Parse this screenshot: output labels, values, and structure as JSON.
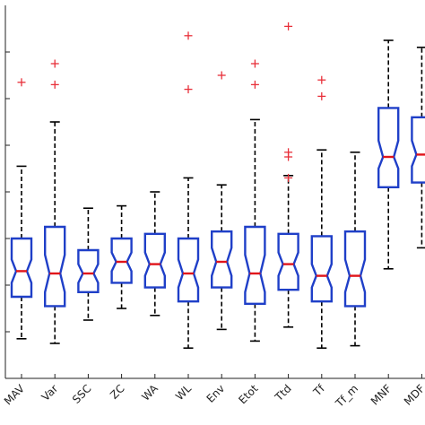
{
  "chart_data": {
    "type": "boxplot",
    "notched": true,
    "title": "",
    "xlabel": "",
    "ylabel": "",
    "ylim": [
      0,
      8
    ],
    "y_ticks": [
      1,
      2,
      3,
      4,
      5,
      6,
      7
    ],
    "y_tick_labels_visible": false,
    "categories": [
      "MAV",
      "Var",
      "SSC",
      "ZC",
      "WA",
      "WL",
      "Env",
      "Etot",
      "Ttd",
      "Tf",
      "Tf_m",
      "MNF",
      "MDF"
    ],
    "boxes": [
      {
        "category": "MAV",
        "whisker_low": 0.85,
        "q1": 1.75,
        "median": 2.3,
        "q3": 3.0,
        "whisker_high": 4.55,
        "notch_low": 2.05,
        "notch_high": 2.55,
        "outliers": [
          6.35
        ]
      },
      {
        "category": "Var",
        "whisker_low": 0.75,
        "q1": 1.55,
        "median": 2.25,
        "q3": 3.25,
        "whisker_high": 5.5,
        "notch_low": 1.85,
        "notch_high": 2.65,
        "outliers": [
          6.75,
          6.3
        ]
      },
      {
        "category": "SSC",
        "whisker_low": 1.25,
        "q1": 1.85,
        "median": 2.25,
        "q3": 2.75,
        "whisker_high": 3.65,
        "notch_low": 2.05,
        "notch_high": 2.45,
        "outliers": []
      },
      {
        "category": "ZC",
        "whisker_low": 1.5,
        "q1": 2.05,
        "median": 2.5,
        "q3": 3.0,
        "whisker_high": 3.7,
        "notch_low": 2.3,
        "notch_high": 2.7,
        "outliers": []
      },
      {
        "category": "WA",
        "whisker_low": 1.35,
        "q1": 1.95,
        "median": 2.45,
        "q3": 3.1,
        "whisker_high": 4.0,
        "notch_low": 2.2,
        "notch_high": 2.7,
        "outliers": []
      },
      {
        "category": "WL",
        "whisker_low": 0.65,
        "q1": 1.65,
        "median": 2.25,
        "q3": 3.0,
        "whisker_high": 4.3,
        "notch_low": 1.95,
        "notch_high": 2.55,
        "outliers": [
          7.35,
          6.2
        ]
      },
      {
        "category": "Env",
        "whisker_low": 1.05,
        "q1": 1.95,
        "median": 2.5,
        "q3": 3.15,
        "whisker_high": 4.15,
        "notch_low": 2.2,
        "notch_high": 2.8,
        "outliers": [
          6.5
        ]
      },
      {
        "category": "Etot",
        "whisker_low": 0.8,
        "q1": 1.6,
        "median": 2.25,
        "q3": 3.25,
        "whisker_high": 5.55,
        "notch_low": 1.85,
        "notch_high": 2.65,
        "outliers": [
          6.75,
          6.3
        ]
      },
      {
        "category": "Ttd",
        "whisker_low": 1.1,
        "q1": 1.9,
        "median": 2.45,
        "q3": 3.1,
        "whisker_high": 4.35,
        "notch_low": 2.2,
        "notch_high": 2.7,
        "outliers": [
          7.55,
          4.85,
          4.75,
          4.3
        ]
      },
      {
        "category": "Tf",
        "whisker_low": 0.65,
        "q1": 1.65,
        "median": 2.2,
        "q3": 3.05,
        "whisker_high": 4.9,
        "notch_low": 1.95,
        "notch_high": 2.45,
        "outliers": [
          6.4,
          6.05
        ]
      },
      {
        "category": "Tf_m",
        "whisker_low": 0.7,
        "q1": 1.55,
        "median": 2.2,
        "q3": 3.15,
        "whisker_high": 4.85,
        "notch_low": 1.85,
        "notch_high": 2.55,
        "outliers": []
      },
      {
        "category": "MNF",
        "whisker_low": 2.35,
        "q1": 4.1,
        "median": 4.75,
        "q3": 5.8,
        "whisker_high": 7.25,
        "notch_low": 4.5,
        "notch_high": 5.1,
        "outliers": []
      },
      {
        "category": "MDF",
        "whisker_low": 2.8,
        "q1": 4.2,
        "median": 4.8,
        "q3": 5.6,
        "whisker_high": 7.1,
        "notch_low": 4.55,
        "notch_high": 5.1,
        "outliers": []
      }
    ],
    "grid": false,
    "legend": "none",
    "colors": {
      "box": "#1f3fc8",
      "median": "#e0141b",
      "whisker": "#000000",
      "outlier": "#e8303a",
      "axis": "#222222"
    }
  }
}
